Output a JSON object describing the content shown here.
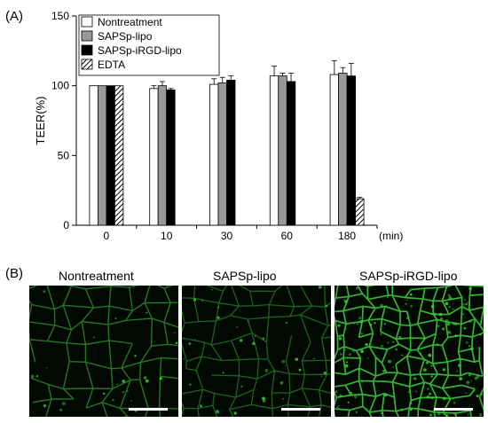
{
  "panel_labels": {
    "a": "(A)",
    "b": "(B)"
  },
  "chart_data": {
    "type": "bar",
    "categories": [
      "0",
      "10",
      "30",
      "60",
      "180"
    ],
    "xlabel": "",
    "x_unit": "(min)",
    "ylabel": "TEER(%)",
    "ylim": [
      0,
      150
    ],
    "yticks": [
      0,
      50,
      100,
      150
    ],
    "legend_position": "top-left",
    "series": [
      {
        "name": "Nontreatment",
        "fill": "#ffffff",
        "pattern": "none",
        "values": [
          100,
          98,
          101,
          107,
          108
        ],
        "errors": [
          0,
          2,
          4,
          7,
          10
        ]
      },
      {
        "name": "SAPSp-lipo",
        "fill": "#999999",
        "pattern": "none",
        "values": [
          100,
          100,
          102,
          107,
          109
        ],
        "errors": [
          0,
          3,
          4,
          2,
          4
        ]
      },
      {
        "name": "SAPSp-iRGD-lipo",
        "fill": "#000000",
        "pattern": "none",
        "values": [
          100,
          97,
          104,
          103,
          107
        ],
        "errors": [
          0,
          1,
          3,
          6,
          9
        ]
      },
      {
        "name": "EDTA",
        "fill": "#ffffff",
        "pattern": "hatch",
        "values": [
          100,
          null,
          null,
          null,
          19
        ],
        "errors": [
          0,
          0,
          0,
          0,
          1
        ]
      }
    ]
  },
  "micrographs": [
    {
      "title": "Nontreatment"
    },
    {
      "title": "SAPSp-lipo"
    },
    {
      "title": "SAPSp-iRGD-lipo"
    }
  ],
  "colors": {
    "stain": "#3fd23f",
    "background": "#020802"
  }
}
